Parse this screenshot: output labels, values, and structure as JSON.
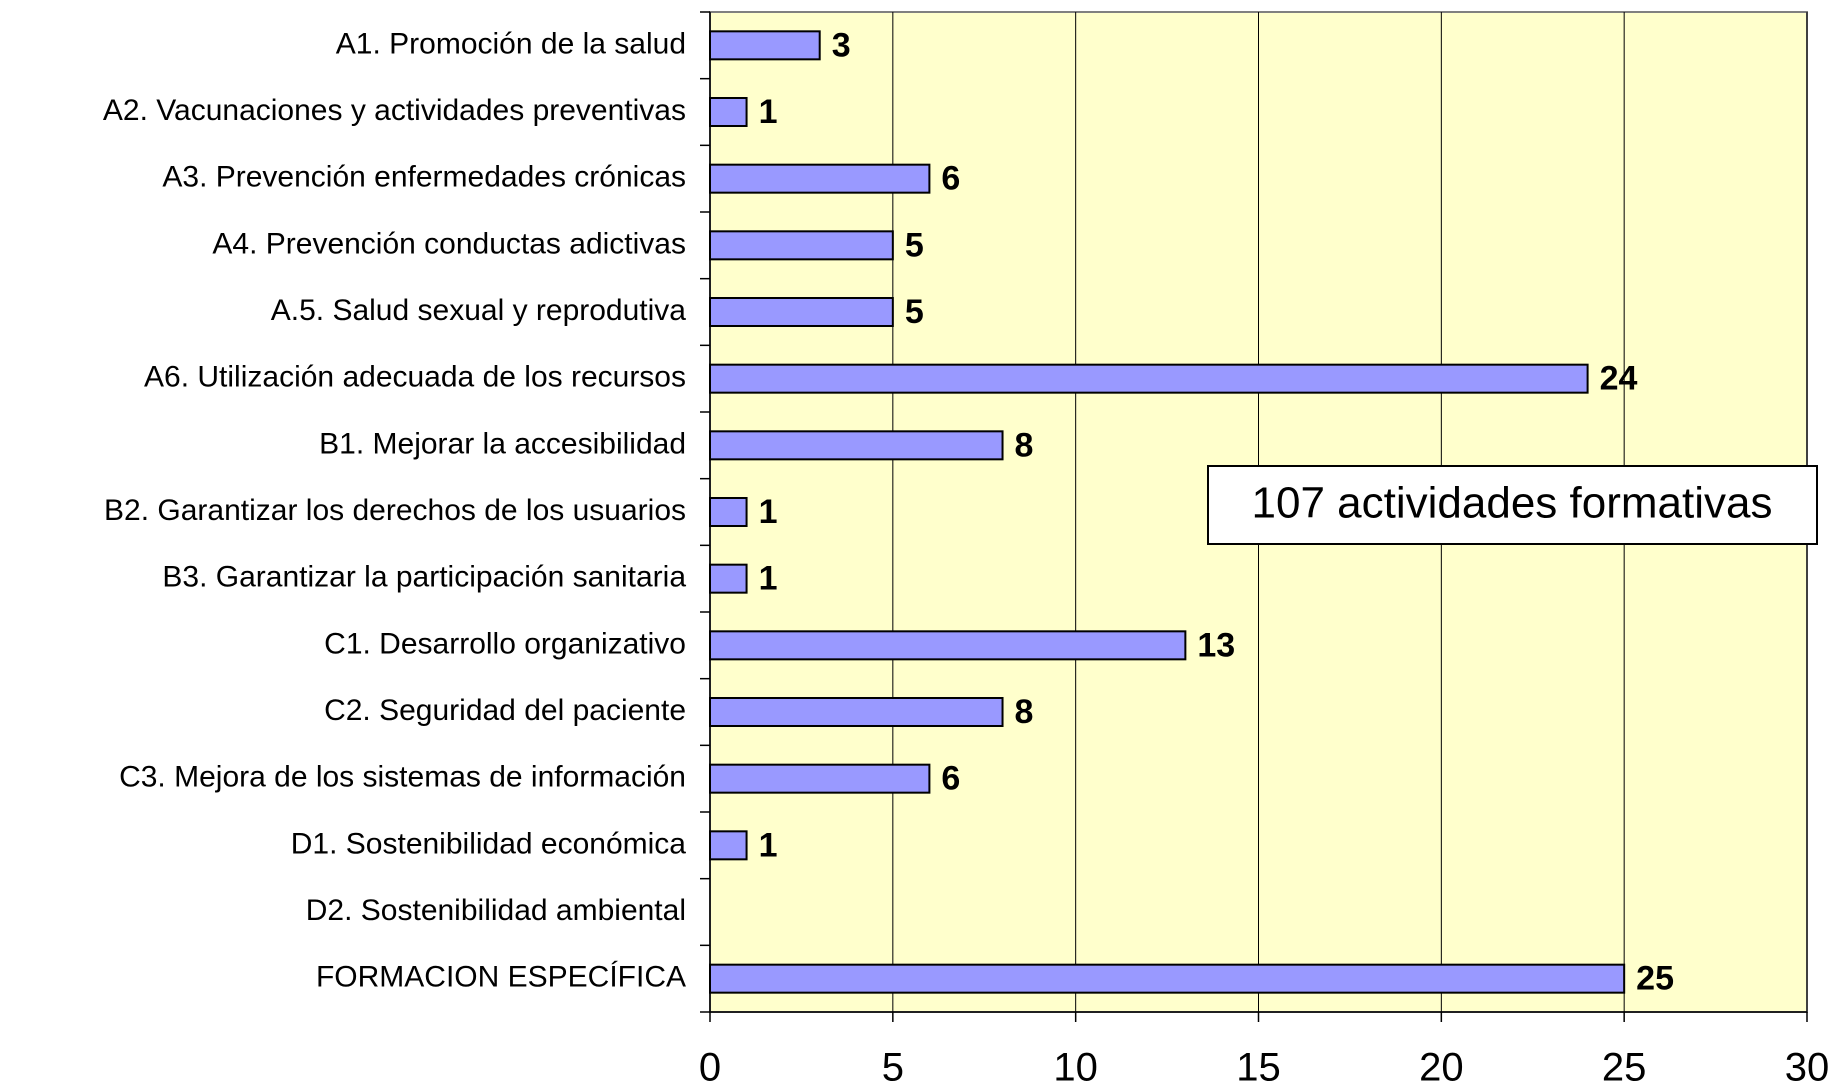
{
  "chart_data": {
    "type": "bar",
    "orientation": "horizontal",
    "categories": [
      "A1. Promoción de la salud",
      "A2. Vacunaciones y actividades preventivas",
      "A3. Prevención enfermedades crónicas",
      "A4. Prevención conductas adictivas",
      "A.5. Salud sexual y reprodutiva",
      "A6. Utilización adecuada de los recursos",
      "B1. Mejorar la accesibilidad",
      "B2. Garantizar los derechos de los usuarios",
      "B3. Garantizar la participación sanitaria",
      "C1. Desarrollo organizativo",
      "C2. Seguridad del paciente",
      "C3. Mejora de los sistemas de información",
      "D1. Sostenibilidad económica",
      "D2. Sostenibilidad ambiental",
      "FORMACION ESPECÍFICA"
    ],
    "values": [
      3,
      1,
      6,
      5,
      5,
      24,
      8,
      1,
      1,
      13,
      8,
      6,
      1,
      null,
      25
    ],
    "color": "#9999ff",
    "xlim": [
      0,
      30
    ],
    "xticks": [
      0,
      5,
      10,
      15,
      20,
      25,
      30
    ],
    "grid": true,
    "annotation": "107 actividades formativas"
  }
}
